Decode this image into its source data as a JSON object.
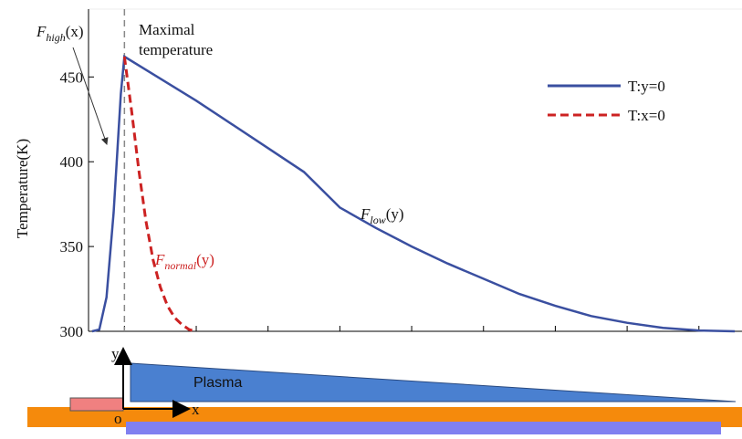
{
  "chart_data": {
    "type": "line",
    "y_label": "Temperature(K)",
    "ylim": [
      300,
      490
    ],
    "yticks": [
      300,
      350,
      400,
      450
    ],
    "xlim": [
      -0.5,
      8.6
    ],
    "xticks": [
      0,
      1,
      2,
      3,
      4,
      5,
      6,
      7,
      8
    ],
    "legend": "upper right",
    "series": [
      {
        "name": "T:y=0",
        "color": "#3a4fa0",
        "dash": false,
        "x": [
          -0.45,
          -0.35,
          -0.25,
          -0.15,
          -0.05,
          0,
          0.5,
          1,
          1.5,
          2,
          2.5,
          3,
          3.5,
          4,
          4.5,
          5,
          5.5,
          6,
          6.5,
          7,
          7.5,
          8,
          8.5
        ],
        "values": [
          300,
          301,
          320,
          370,
          440,
          462,
          449,
          436,
          422,
          408,
          394,
          373,
          361,
          350,
          340,
          331,
          322,
          315,
          309,
          305,
          302,
          300.5,
          300
        ]
      },
      {
        "name": "T:x=0",
        "color": "#cc2222",
        "dash": true,
        "x": [
          0,
          0.1,
          0.2,
          0.3,
          0.4,
          0.5,
          0.6,
          0.7,
          0.8,
          0.9,
          1
        ],
        "values": [
          462,
          430,
          395,
          365,
          342,
          326,
          315,
          308,
          304,
          301,
          300
        ]
      }
    ],
    "annotations": [
      {
        "base": "F",
        "sub": "high",
        "rest": "(x)"
      },
      {
        "base": "F",
        "sub": "low",
        "rest": "(y)"
      },
      {
        "base": "F",
        "sub": "normal",
        "rest": "(y)"
      }
    ],
    "max_label": [
      "Maximal",
      "temperature"
    ]
  },
  "diagram": {
    "labels": {
      "y": "y",
      "o": "o",
      "x": "x",
      "plasma": "Plasma"
    }
  }
}
